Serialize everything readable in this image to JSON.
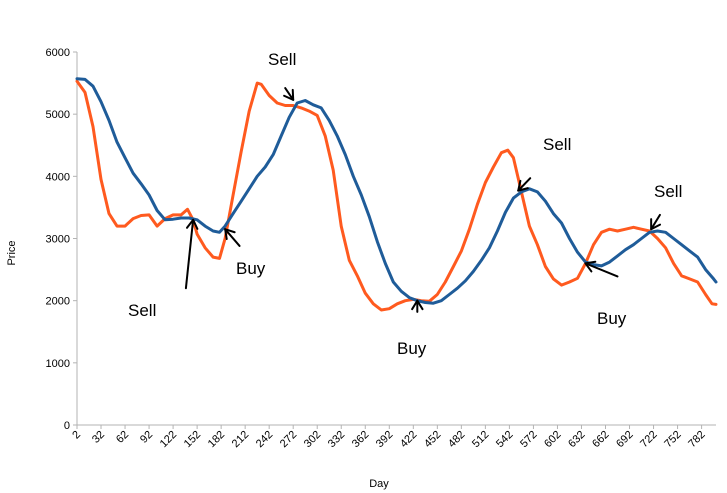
{
  "chart_data": {
    "type": "line",
    "title": "",
    "xlabel": "Day",
    "ylabel": "Price",
    "xlim": [
      2,
      800
    ],
    "ylim": [
      0,
      6000
    ],
    "grid": false,
    "legend": "none",
    "yticks": [
      0,
      1000,
      2000,
      3000,
      4000,
      5000,
      6000
    ],
    "xticks": [
      2,
      32,
      62,
      92,
      122,
      152,
      182,
      212,
      242,
      272,
      302,
      332,
      362,
      392,
      422,
      452,
      482,
      512,
      542,
      572,
      602,
      632,
      662,
      692,
      722,
      752,
      782
    ],
    "series": [
      {
        "color": "#ff5a1f",
        "points": [
          [
            2,
            5530
          ],
          [
            12,
            5350
          ],
          [
            22,
            4800
          ],
          [
            32,
            3950
          ],
          [
            42,
            3400
          ],
          [
            52,
            3200
          ],
          [
            62,
            3200
          ],
          [
            72,
            3320
          ],
          [
            82,
            3370
          ],
          [
            92,
            3380
          ],
          [
            102,
            3200
          ],
          [
            112,
            3320
          ],
          [
            122,
            3380
          ],
          [
            132,
            3380
          ],
          [
            140,
            3470
          ],
          [
            147,
            3300
          ],
          [
            152,
            3070
          ],
          [
            162,
            2850
          ],
          [
            172,
            2700
          ],
          [
            180,
            2680
          ],
          [
            187,
            3000
          ],
          [
            197,
            3700
          ],
          [
            207,
            4400
          ],
          [
            217,
            5050
          ],
          [
            227,
            5500
          ],
          [
            232,
            5480
          ],
          [
            242,
            5300
          ],
          [
            252,
            5180
          ],
          [
            262,
            5140
          ],
          [
            272,
            5140
          ],
          [
            282,
            5100
          ],
          [
            292,
            5050
          ],
          [
            302,
            4980
          ],
          [
            312,
            4650
          ],
          [
            322,
            4100
          ],
          [
            332,
            3200
          ],
          [
            342,
            2650
          ],
          [
            352,
            2400
          ],
          [
            362,
            2120
          ],
          [
            372,
            1950
          ],
          [
            382,
            1850
          ],
          [
            392,
            1870
          ],
          [
            402,
            1950
          ],
          [
            412,
            2000
          ],
          [
            422,
            2020
          ],
          [
            432,
            2000
          ],
          [
            442,
            1990
          ],
          [
            452,
            2100
          ],
          [
            462,
            2300
          ],
          [
            472,
            2550
          ],
          [
            482,
            2800
          ],
          [
            492,
            3150
          ],
          [
            502,
            3550
          ],
          [
            512,
            3900
          ],
          [
            522,
            4150
          ],
          [
            532,
            4380
          ],
          [
            540,
            4420
          ],
          [
            547,
            4300
          ],
          [
            557,
            3750
          ],
          [
            567,
            3200
          ],
          [
            577,
            2900
          ],
          [
            587,
            2550
          ],
          [
            597,
            2350
          ],
          [
            607,
            2250
          ],
          [
            617,
            2300
          ],
          [
            627,
            2360
          ],
          [
            637,
            2600
          ],
          [
            647,
            2900
          ],
          [
            657,
            3100
          ],
          [
            667,
            3150
          ],
          [
            677,
            3120
          ],
          [
            687,
            3150
          ],
          [
            697,
            3180
          ],
          [
            707,
            3150
          ],
          [
            717,
            3120
          ],
          [
            727,
            3000
          ],
          [
            737,
            2850
          ],
          [
            747,
            2600
          ],
          [
            757,
            2400
          ],
          [
            767,
            2350
          ],
          [
            777,
            2300
          ],
          [
            787,
            2100
          ],
          [
            795,
            1950
          ],
          [
            800,
            1940
          ]
        ]
      },
      {
        "color": "#1f5c99",
        "points": [
          [
            2,
            5570
          ],
          [
            12,
            5560
          ],
          [
            22,
            5450
          ],
          [
            32,
            5200
          ],
          [
            42,
            4900
          ],
          [
            52,
            4550
          ],
          [
            62,
            4300
          ],
          [
            72,
            4050
          ],
          [
            82,
            3880
          ],
          [
            92,
            3700
          ],
          [
            102,
            3450
          ],
          [
            112,
            3300
          ],
          [
            122,
            3310
          ],
          [
            132,
            3330
          ],
          [
            142,
            3330
          ],
          [
            152,
            3300
          ],
          [
            162,
            3200
          ],
          [
            172,
            3120
          ],
          [
            180,
            3100
          ],
          [
            187,
            3200
          ],
          [
            197,
            3400
          ],
          [
            207,
            3600
          ],
          [
            217,
            3800
          ],
          [
            227,
            4000
          ],
          [
            237,
            4150
          ],
          [
            247,
            4350
          ],
          [
            257,
            4650
          ],
          [
            267,
            4950
          ],
          [
            277,
            5180
          ],
          [
            287,
            5220
          ],
          [
            297,
            5150
          ],
          [
            307,
            5100
          ],
          [
            317,
            4900
          ],
          [
            327,
            4650
          ],
          [
            337,
            4350
          ],
          [
            347,
            4000
          ],
          [
            357,
            3700
          ],
          [
            367,
            3350
          ],
          [
            377,
            2950
          ],
          [
            387,
            2600
          ],
          [
            397,
            2300
          ],
          [
            407,
            2150
          ],
          [
            417,
            2050
          ],
          [
            427,
            2000
          ],
          [
            437,
            1970
          ],
          [
            447,
            1960
          ],
          [
            457,
            2000
          ],
          [
            467,
            2100
          ],
          [
            477,
            2200
          ],
          [
            487,
            2320
          ],
          [
            497,
            2470
          ],
          [
            507,
            2650
          ],
          [
            517,
            2850
          ],
          [
            527,
            3120
          ],
          [
            537,
            3420
          ],
          [
            547,
            3650
          ],
          [
            557,
            3750
          ],
          [
            567,
            3800
          ],
          [
            577,
            3750
          ],
          [
            587,
            3600
          ],
          [
            597,
            3400
          ],
          [
            607,
            3250
          ],
          [
            617,
            3000
          ],
          [
            627,
            2780
          ],
          [
            637,
            2620
          ],
          [
            647,
            2580
          ],
          [
            657,
            2560
          ],
          [
            667,
            2620
          ],
          [
            677,
            2720
          ],
          [
            687,
            2820
          ],
          [
            697,
            2900
          ],
          [
            707,
            3000
          ],
          [
            717,
            3100
          ],
          [
            727,
            3120
          ],
          [
            737,
            3100
          ],
          [
            747,
            3000
          ],
          [
            757,
            2900
          ],
          [
            767,
            2800
          ],
          [
            777,
            2700
          ],
          [
            787,
            2500
          ],
          [
            797,
            2350
          ],
          [
            800,
            2300
          ]
        ]
      }
    ],
    "annotations": [
      {
        "text": "Sell",
        "arrow": {
          "from": [
            262,
            5420
          ],
          "to": [
            272,
            5230
          ]
        }
      },
      {
        "text": "Sell",
        "arrow": {
          "from": [
            138,
            2200
          ],
          "to": [
            147,
            3300
          ]
        }
      },
      {
        "text": "Buy",
        "arrow": {
          "from": [
            205,
            2880
          ],
          "to": [
            187,
            3150
          ]
        }
      },
      {
        "text": "Sell",
        "arrow": {
          "from": [
            568,
            3970
          ],
          "to": [
            553,
            3770
          ]
        }
      },
      {
        "text": "Buy",
        "arrow": {
          "from": [
            427,
            1820
          ],
          "to": [
            427,
            2000
          ]
        }
      },
      {
        "text": "Sell",
        "arrow": {
          "from": [
            730,
            3380
          ],
          "to": [
            719,
            3150
          ]
        }
      },
      {
        "text": "Buy",
        "arrow": {
          "from": [
            677,
            2390
          ],
          "to": [
            637,
            2600
          ]
        }
      }
    ]
  }
}
